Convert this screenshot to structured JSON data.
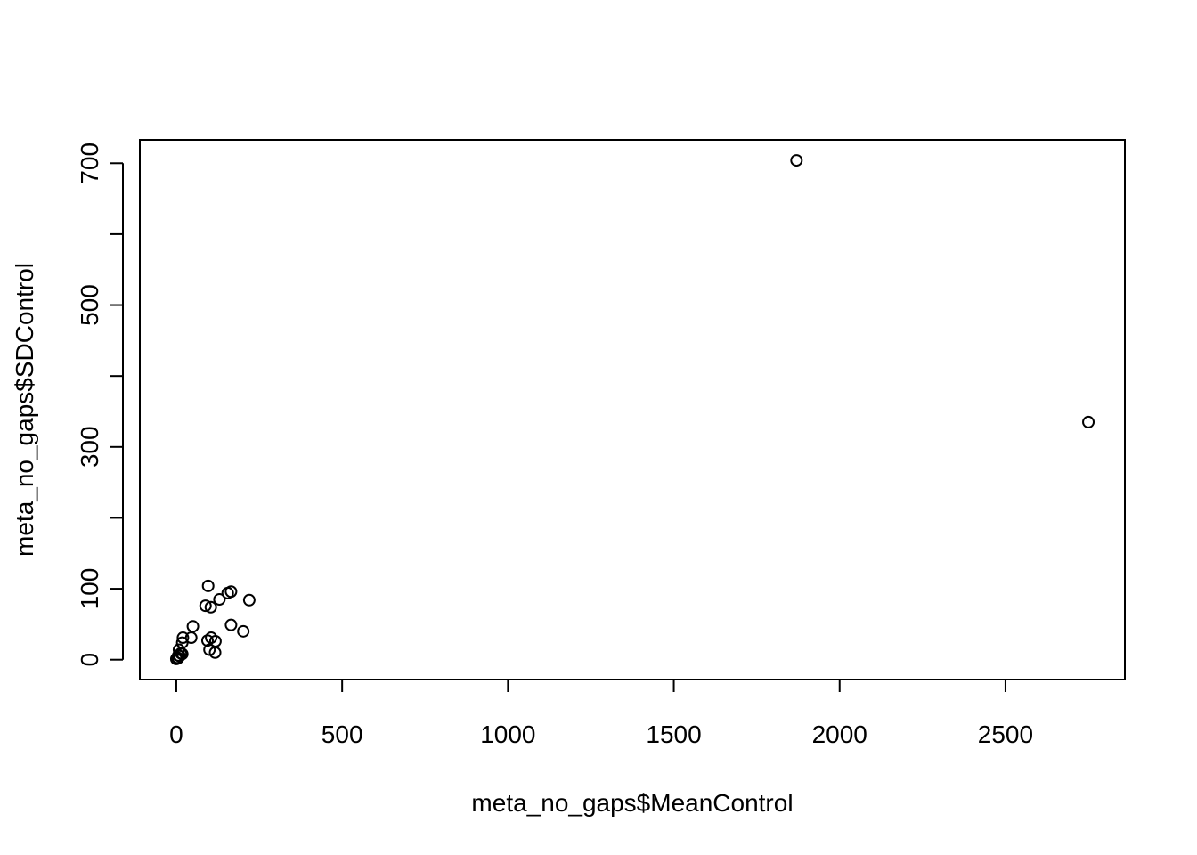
{
  "chart_data": {
    "type": "scatter",
    "title": "",
    "xlabel": "meta_no_gaps$MeanControl",
    "ylabel": "meta_no_gaps$SDControl",
    "xlim": [
      -110,
      2860
    ],
    "ylim": [
      -28,
      733
    ],
    "xticks": [
      0,
      500,
      1000,
      1500,
      2000,
      2500
    ],
    "yticks": [
      0,
      100,
      200,
      300,
      400,
      500,
      600,
      700
    ],
    "yticks_labeled": [
      0,
      100,
      300,
      500,
      700
    ],
    "grid": false,
    "marker": "open-circle",
    "points": [
      {
        "x": 1870,
        "y": 704
      },
      {
        "x": 2750,
        "y": 335
      },
      {
        "x": 96,
        "y": 104
      },
      {
        "x": 165,
        "y": 96
      },
      {
        "x": 155,
        "y": 94
      },
      {
        "x": 220,
        "y": 84
      },
      {
        "x": 130,
        "y": 85
      },
      {
        "x": 88,
        "y": 76
      },
      {
        "x": 104,
        "y": 74
      },
      {
        "x": 165,
        "y": 49
      },
      {
        "x": 202,
        "y": 40
      },
      {
        "x": 50,
        "y": 47
      },
      {
        "x": 45,
        "y": 31
      },
      {
        "x": 20,
        "y": 31
      },
      {
        "x": 18,
        "y": 24
      },
      {
        "x": 105,
        "y": 31
      },
      {
        "x": 94,
        "y": 27
      },
      {
        "x": 118,
        "y": 26
      },
      {
        "x": 100,
        "y": 14
      },
      {
        "x": 117,
        "y": 10
      },
      {
        "x": 8,
        "y": 14
      },
      {
        "x": 14,
        "y": 9
      },
      {
        "x": 18,
        "y": 8
      },
      {
        "x": 6,
        "y": 6
      },
      {
        "x": 10,
        "y": 5
      },
      {
        "x": 3,
        "y": 3
      },
      {
        "x": 0,
        "y": 1
      },
      {
        "x": 5,
        "y": 2
      }
    ]
  }
}
